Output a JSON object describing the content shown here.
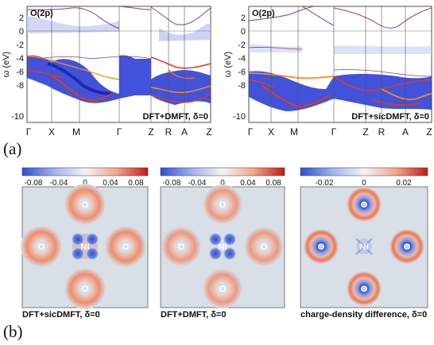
{
  "figure": {
    "panel_a_label": "(a)",
    "panel_b_label": "(b)"
  },
  "band_plots": [
    {
      "orbital_label": "O(2p)",
      "method_label": "DFT+DMFT, δ=0",
      "ylabel": "ω (eV)",
      "yticks": [
        "2",
        "0",
        "-2",
        "-4",
        "-6",
        "-8",
        "-10"
      ],
      "kpoints": [
        "Γ",
        "X",
        "M",
        "Γ",
        "Z",
        "R",
        "A",
        "Z"
      ]
    },
    {
      "orbital_label": "O(2p)",
      "method_label": "DFT+sicDMFT, δ=0",
      "ylabel": "ω (eV)",
      "yticks": [
        "2",
        "0",
        "-2",
        "-4",
        "-6",
        "-8",
        "-10"
      ],
      "kpoints": [
        "Γ",
        "X",
        "M",
        "Γ",
        "Z",
        "R",
        "A",
        "Z"
      ]
    }
  ],
  "density_maps": [
    {
      "caption": "DFT+sicDMFT, δ=0",
      "colorbar_ticks": [
        "-0.08",
        "-0.04",
        "0",
        "0.04",
        "0.08"
      ],
      "center_atom": "Ni",
      "ligand_atom": "O"
    },
    {
      "caption": "DFT+DMFT, δ=0",
      "colorbar_ticks": [
        "-0.08",
        "-0.04",
        "0",
        "0.04",
        "0.08"
      ],
      "center_atom": "Ni",
      "ligand_atom": "O"
    },
    {
      "caption": "charge-density difference, δ=0",
      "colorbar_ticks": [
        "-0.02",
        "0",
        "0.02"
      ],
      "center_atom": "Ni",
      "ligand_atom": "O"
    }
  ],
  "colors": {
    "spectral_blue": "#1a2bd6",
    "spectral_red": "#d62a1a",
    "band_line": "#8a3a86",
    "map_background": "#d8dfe6",
    "positive": "#e8785a",
    "negative": "#2f4fd0"
  }
}
